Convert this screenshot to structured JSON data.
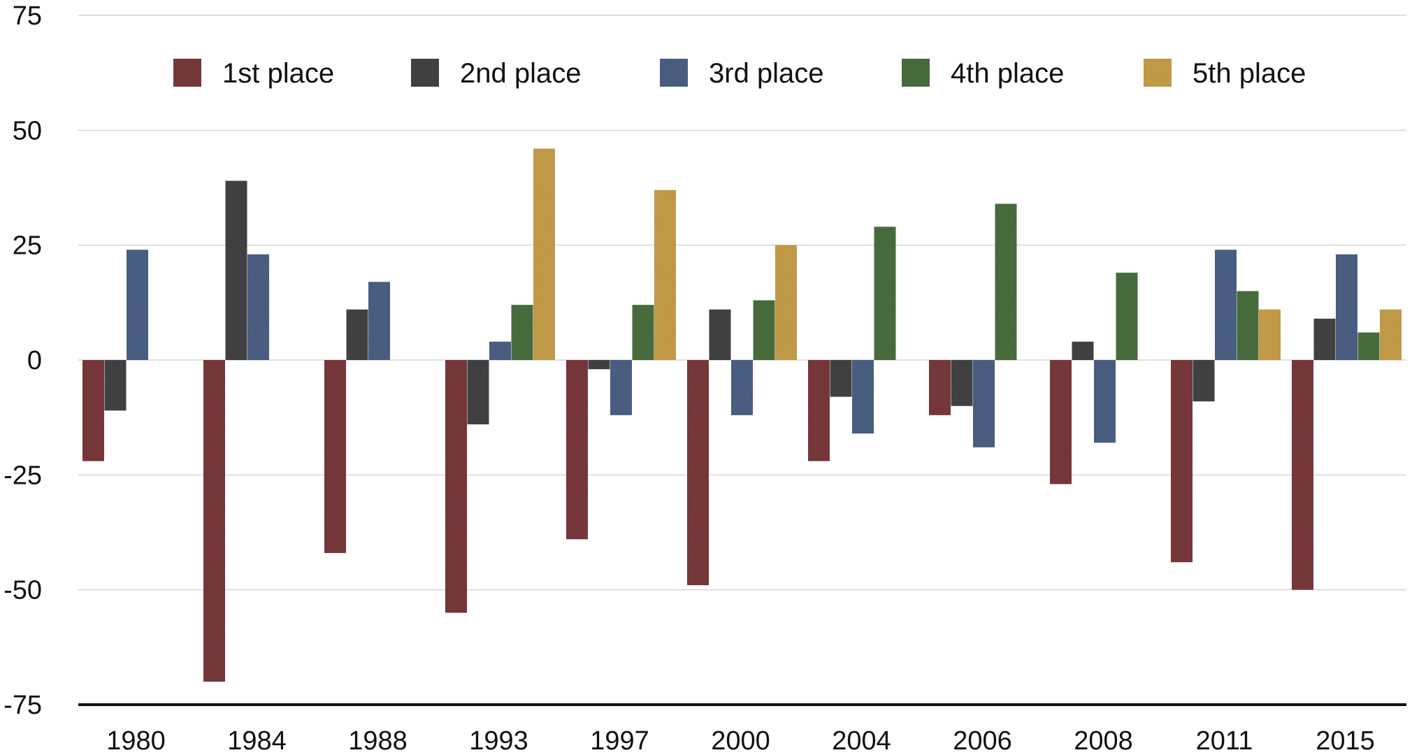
{
  "chart_data": {
    "type": "bar",
    "title": "",
    "xlabel": "",
    "ylabel": "",
    "ylim": [
      -75,
      75
    ],
    "yticks": [
      75,
      50,
      25,
      0,
      -25,
      -50,
      -75
    ],
    "ytick_labels": [
      "75",
      "50",
      "25",
      "0",
      "-25",
      "-50",
      "-75"
    ],
    "grid": true,
    "legend_position": "top",
    "categories": [
      "1980",
      "1984",
      "1988",
      "1993",
      "1997",
      "2000",
      "2004",
      "2006",
      "2008",
      "2011",
      "2015"
    ],
    "series": [
      {
        "name": "1st place",
        "color": "#7a3b3e",
        "values": [
          -22,
          -70,
          -42,
          -55,
          -39,
          -49,
          -22,
          -12,
          -27,
          -44,
          -50
        ]
      },
      {
        "name": "2nd place",
        "color": "#454545",
        "values": [
          -11,
          39,
          11,
          -14,
          -2,
          11,
          -8,
          -10,
          4,
          -9,
          9
        ]
      },
      {
        "name": "3rd place",
        "color": "#4e6286",
        "values": [
          24,
          23,
          17,
          4,
          -12,
          -12,
          -16,
          -19,
          -18,
          24,
          23
        ]
      },
      {
        "name": "4th place",
        "color": "#4b7040",
        "values": [
          null,
          null,
          null,
          12,
          12,
          13,
          29,
          34,
          19,
          15,
          6
        ]
      },
      {
        "name": "5th place",
        "color": "#c8a04c",
        "values": [
          null,
          null,
          null,
          46,
          37,
          25,
          null,
          null,
          null,
          11,
          11
        ]
      }
    ]
  }
}
